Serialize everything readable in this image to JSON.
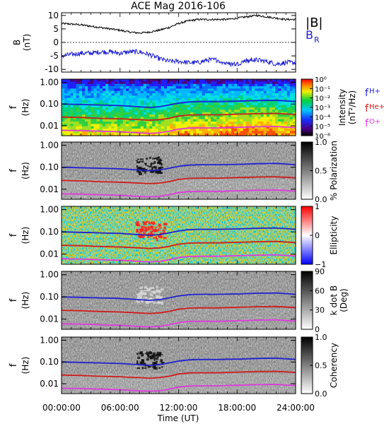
{
  "title": "ACE Mag 2016-106",
  "colors": {
    "bt": "#000000",
    "br": "#1f1fd0",
    "fH": "#1f1fd0",
    "fHe": "#d01a1a",
    "fO": "#e038e0"
  },
  "legend": {
    "bt": "|B|",
    "br_main": "B",
    "br_sub": "R",
    "fh_main": "f",
    "fh_sub": "H+",
    "fhe_main": "f",
    "fhe_sub": "He+",
    "fo_main": "f",
    "fo_sub": "O+"
  },
  "xaxis": {
    "label": "Time (UT)",
    "ticks": [
      "00:00:00",
      "06:00:00",
      "12:00:00",
      "18:00:00",
      "24:00:00"
    ]
  },
  "chart_data": [
    {
      "type": "line",
      "ylabel": "B",
      "yunit": "(nT)",
      "ylim": [
        -11,
        11
      ],
      "yticks": [
        "10",
        "5",
        "0",
        "-5",
        "-10"
      ],
      "x_hours": [
        0,
        1,
        2,
        3,
        4,
        5,
        6,
        7,
        8,
        9,
        10,
        11,
        12,
        13,
        14,
        15,
        16,
        17,
        18,
        19,
        20,
        21,
        22,
        23,
        24
      ],
      "series": [
        {
          "name": "|B|",
          "values": [
            7,
            6.8,
            6.5,
            6,
            5.5,
            5,
            4.5,
            3.8,
            3.5,
            3.8,
            4.5,
            5.5,
            7,
            8,
            8.5,
            8.5,
            8.5,
            8.5,
            9,
            9.5,
            10,
            9.5,
            9,
            8.5,
            8.5
          ]
        },
        {
          "name": "B_R",
          "values": [
            -5,
            -4.5,
            -4,
            -4,
            -3.5,
            -3.5,
            -4,
            -3.5,
            -3.5,
            -4.5,
            -6,
            -7,
            -7,
            -7.5,
            -7.5,
            -6.5,
            -6.5,
            -8,
            -8,
            -6.5,
            -6.5,
            -7,
            -8,
            -7.5,
            -7.5
          ]
        }
      ]
    },
    {
      "type": "heatmap",
      "ylabel": "f",
      "yunit": "(Hz)",
      "yticks": [
        "1.00",
        "0.10",
        "0.01"
      ],
      "colorbar": {
        "label": "Intensity",
        "unit": "(nT²/Hz)",
        "ticks": [
          "10⁰",
          "10⁻¹",
          "10⁻²",
          "10⁻³",
          "10⁻⁴",
          "10⁻⁵",
          "10⁻⁶"
        ]
      }
    },
    {
      "type": "heatmap",
      "ylabel": "f",
      "yunit": "(Hz)",
      "yticks": [
        "1.00",
        "0.10",
        "0.01"
      ],
      "colorbar": {
        "label": "% Polarization",
        "unit": "",
        "ticks": [
          "1.0",
          "0.5",
          "0.0"
        ]
      }
    },
    {
      "type": "heatmap",
      "ylabel": "f",
      "yunit": "(Hz)",
      "yticks": [
        "1.00",
        "0.10",
        "0.01"
      ],
      "colorbar": {
        "label": "Ellipticity",
        "unit": "",
        "ticks": [
          "1",
          "0",
          "−1"
        ]
      }
    },
    {
      "type": "heatmap",
      "ylabel": "f",
      "yunit": "(Hz)",
      "yticks": [
        "1.00",
        "0.10",
        "0.01"
      ],
      "colorbar": {
        "label": "k dot B",
        "unit": "(Deg)",
        "ticks": [
          "90",
          "60",
          "30",
          "0"
        ]
      }
    },
    {
      "type": "heatmap",
      "ylabel": "f",
      "yunit": "(Hz)",
      "yticks": [
        "1.00",
        "0.10",
        "0.01"
      ],
      "colorbar": {
        "label": "Coherency",
        "unit": "",
        "ticks": [
          "1.0",
          "0.5",
          "0.0"
        ]
      }
    }
  ],
  "gyro_lines": {
    "x_hours": [
      0,
      2,
      4,
      6,
      8,
      9,
      10,
      11,
      12,
      13,
      14,
      16,
      18,
      20,
      22,
      24
    ],
    "fH": [
      0.1,
      0.095,
      0.09,
      0.085,
      0.075,
      0.07,
      0.075,
      0.09,
      0.11,
      0.125,
      0.13,
      0.13,
      0.135,
      0.145,
      0.15,
      0.13
    ],
    "fHe": [
      0.025,
      0.024,
      0.022,
      0.021,
      0.019,
      0.018,
      0.019,
      0.022,
      0.028,
      0.031,
      0.032,
      0.032,
      0.034,
      0.036,
      0.037,
      0.033
    ],
    "fO": [
      0.0062,
      0.006,
      0.0056,
      0.0053,
      0.0047,
      0.0045,
      0.0047,
      0.0056,
      0.007,
      0.0078,
      0.008,
      0.008,
      0.0085,
      0.009,
      0.0093,
      0.0082
    ]
  }
}
